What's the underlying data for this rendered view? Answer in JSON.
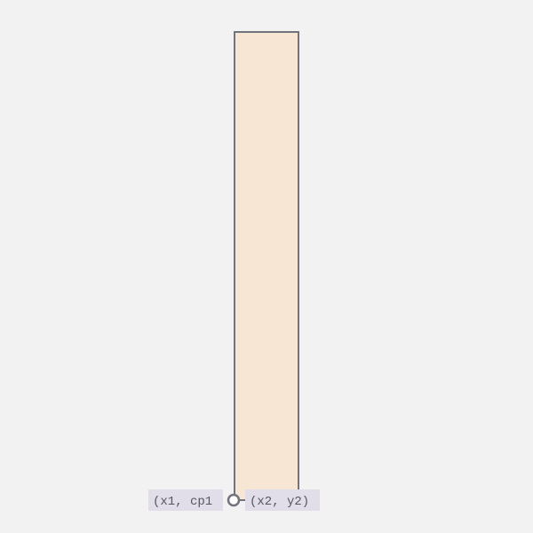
{
  "colors": {
    "background": "#f2f2f2",
    "bar_fill": "#f8e6d5",
    "bar_stroke": "#73737d",
    "label_bg": "#e1dde9",
    "label_text": "#555760",
    "marker_stroke": "#73737d",
    "marker_fill": "#ffffff"
  },
  "labels": {
    "left": "(x1, cp1",
    "right": "(x2, y2)"
  },
  "icons": {
    "marker": "circle-handle-icon"
  }
}
